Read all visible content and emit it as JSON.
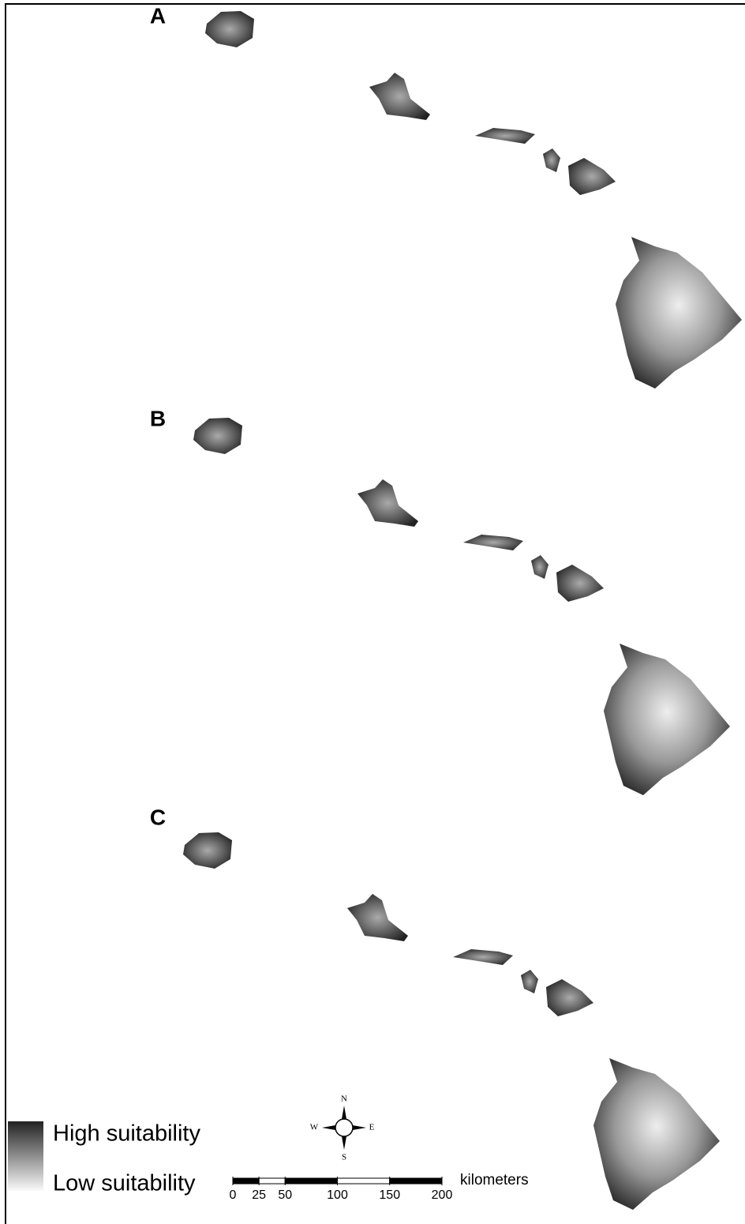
{
  "panels": [
    {
      "label": "A"
    },
    {
      "label": "B"
    },
    {
      "label": "C"
    }
  ],
  "legend": {
    "high": "High suitability",
    "low": "Low suitability"
  },
  "compass": {
    "n": "N",
    "e": "E",
    "s": "S",
    "w": "W"
  },
  "scale_bar": {
    "ticks": [
      0,
      25,
      50,
      100,
      150,
      200
    ],
    "unit": "kilometers"
  }
}
